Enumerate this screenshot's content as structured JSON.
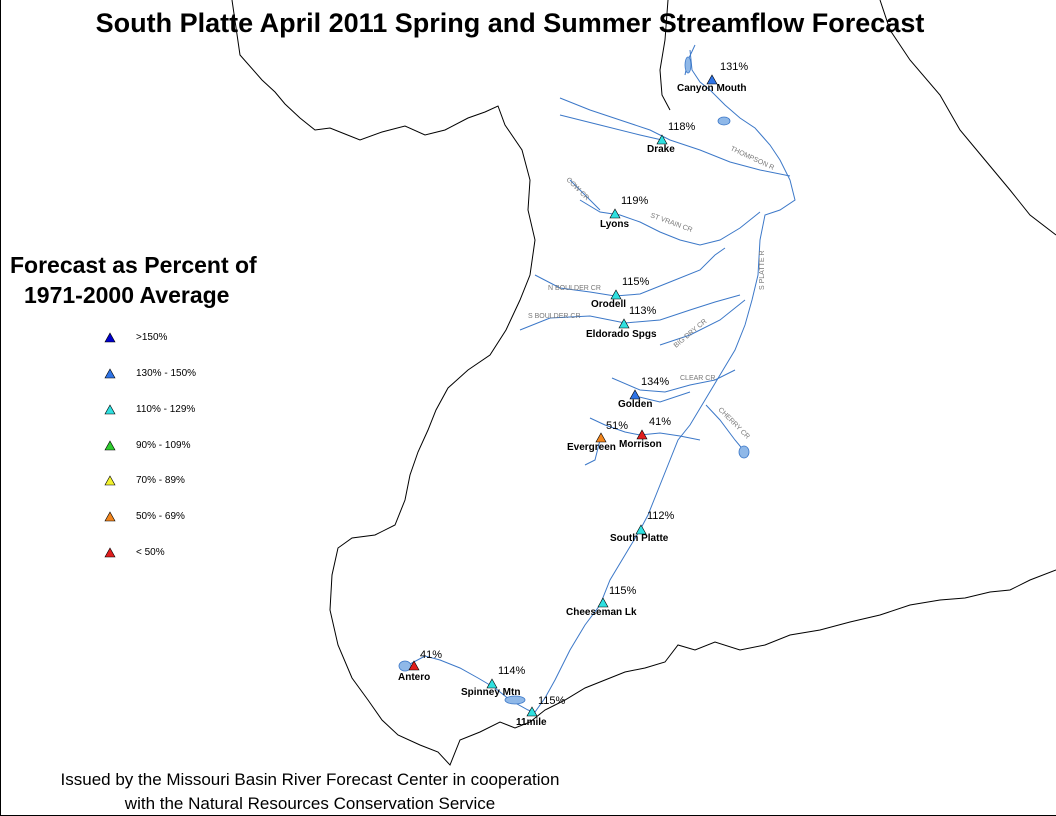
{
  "title": "South Platte April 2011 Spring and Summer Streamflow Forecast",
  "legend": {
    "title_line1": "Forecast as Percent of",
    "title_line2": "1971-2000 Average",
    "items": [
      {
        "label": ">150%",
        "color": "#0000cc"
      },
      {
        "label": "130% - 150%",
        "color": "#2f74e6"
      },
      {
        "label": "110% - 129%",
        "color": "#2fe0e0"
      },
      {
        "label": "90% - 109%",
        "color": "#2ecc2e"
      },
      {
        "label": "70% - 89%",
        "color": "#f2f22e"
      },
      {
        "label": "50% - 69%",
        "color": "#f2861e"
      },
      {
        "label": "< 50%",
        "color": "#e01e1e"
      }
    ]
  },
  "stations": [
    {
      "name": "Canyon Mouth",
      "percent": "131%",
      "color": "#2f74e6"
    },
    {
      "name": "Drake",
      "percent": "118%",
      "color": "#2fe0e0"
    },
    {
      "name": "Lyons",
      "percent": "119%",
      "color": "#2fe0e0"
    },
    {
      "name": "Orodell",
      "percent": "115%",
      "color": "#2fe0e0"
    },
    {
      "name": "Eldorado Spgs",
      "percent": "113%",
      "color": "#2fe0e0"
    },
    {
      "name": "Golden",
      "percent": "134%",
      "color": "#2f74e6"
    },
    {
      "name": "Evergreen",
      "percent": "51%",
      "color": "#f2861e"
    },
    {
      "name": "Morrison",
      "percent": "41%",
      "color": "#e01e1e"
    },
    {
      "name": "South Platte",
      "percent": "112%",
      "color": "#2fe0e0"
    },
    {
      "name": "Cheeseman Lk",
      "percent": "115%",
      "color": "#2fe0e0"
    },
    {
      "name": "Spinney Mtn",
      "percent": "114%",
      "color": "#2fe0e0"
    },
    {
      "name": "11mile",
      "percent": "115%",
      "color": "#2fe0e0"
    },
    {
      "name": "Antero",
      "percent": "41%",
      "color": "#e01e1e"
    }
  ],
  "rivers": [
    "THOMPSON R",
    "ST VRAIN CR",
    "COW CR",
    "N BOULDER CR",
    "S BOULDER CR",
    "BIG DRY CR",
    "CLEAR CR",
    "CHERRY CR",
    "S PLATTE R"
  ],
  "footer": {
    "line1": "Issued by the Missouri Basin River Forecast Center in cooperation",
    "line2": "with the Natural Resources Conservation Service"
  },
  "colors": {
    "river": "#3c78c8",
    "lake": "#8fb8e8",
    "boundary": "#000000"
  }
}
